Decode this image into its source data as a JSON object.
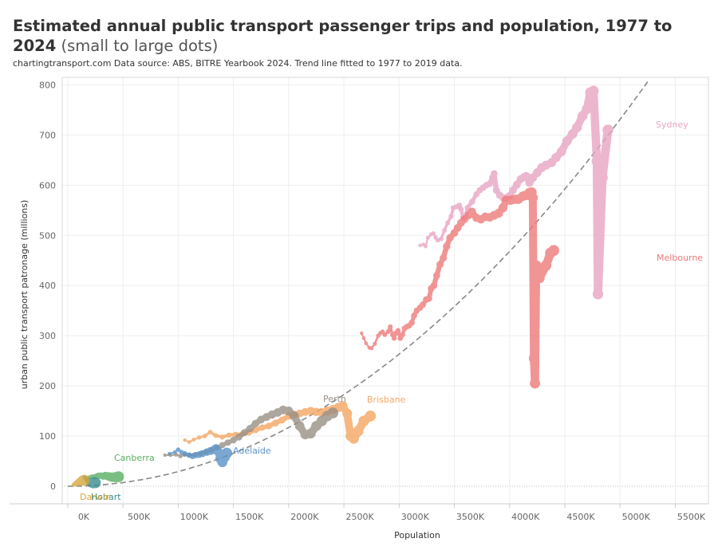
{
  "title": "Estimated annual public transport passenger trips and population, 1977 to 2024",
  "title_suffix": "(small to large dots)",
  "subtitle": "chartingtransport.com  Data source: ABS, BITRE Yearbook 2024. Trend line fitted to 1977 to 2019 data.",
  "chart_data": {
    "type": "scatter",
    "xlabel": "Population",
    "ylabel": "urban public transport patronage (millions)",
    "xlim": [
      -50000,
      5800000
    ],
    "ylim": [
      -35,
      815
    ],
    "x_ticks": [
      0,
      500000,
      1000000,
      1500000,
      2000000,
      2500000,
      3000000,
      3500000,
      4000000,
      4500000,
      5000000,
      5500000
    ],
    "x_tick_labels": [
      "0K",
      "500K",
      "1000K",
      "1500K",
      "2000K",
      "2500K",
      "3000K",
      "3500K",
      "4000K",
      "4500K",
      "5000K",
      "5500K"
    ],
    "y_ticks": [
      0,
      100,
      200,
      300,
      400,
      500,
      600,
      700,
      800
    ],
    "y_tick_labels": [
      "0",
      "100",
      "200",
      "300",
      "400",
      "500",
      "600",
      "700",
      "800"
    ],
    "grid": true,
    "trend_line": {
      "style": "dashed",
      "color": "#888888",
      "formula": "y = 0.5*pop_k^2/1e4 approx (quadratic)",
      "coef_a": 2.86e-05,
      "coef_b": 0.0
    },
    "series": [
      {
        "name": "Sydney",
        "color": "#e8a5c3",
        "points": [
          [
            3190000,
            480
          ],
          [
            3220000,
            482
          ],
          [
            3240000,
            478
          ],
          [
            3260000,
            495
          ],
          [
            3290000,
            502
          ],
          [
            3310000,
            504
          ],
          [
            3330000,
            496
          ],
          [
            3350000,
            490
          ],
          [
            3380000,
            493
          ],
          [
            3410000,
            510
          ],
          [
            3440000,
            525
          ],
          [
            3470000,
            538
          ],
          [
            3490000,
            555
          ],
          [
            3520000,
            557
          ],
          [
            3545000,
            560
          ],
          [
            3560000,
            552
          ],
          [
            3580000,
            535
          ],
          [
            3600000,
            538
          ],
          [
            3620000,
            555
          ],
          [
            3660000,
            567
          ],
          [
            3700000,
            582
          ],
          [
            3730000,
            590
          ],
          [
            3760000,
            595
          ],
          [
            3790000,
            600
          ],
          [
            3820000,
            603
          ],
          [
            3845000,
            615
          ],
          [
            3860000,
            623
          ],
          [
            3880000,
            590
          ],
          [
            3910000,
            580
          ],
          [
            3940000,
            575
          ],
          [
            3970000,
            575
          ],
          [
            4000000,
            579
          ],
          [
            4030000,
            590
          ],
          [
            4065000,
            601
          ],
          [
            4100000,
            612
          ],
          [
            4130000,
            616
          ],
          [
            4150000,
            618
          ],
          [
            4180000,
            605
          ],
          [
            4210000,
            615
          ],
          [
            4250000,
            625
          ],
          [
            4290000,
            635
          ],
          [
            4330000,
            640
          ],
          [
            4380000,
            645
          ],
          [
            4420000,
            655
          ],
          [
            4470000,
            667
          ],
          [
            4520000,
            688
          ],
          [
            4570000,
            702
          ],
          [
            4610000,
            715
          ],
          [
            4660000,
            738
          ],
          [
            4700000,
            752
          ],
          [
            4730000,
            785
          ],
          [
            4760000,
            788
          ],
          [
            4790000,
            648
          ],
          [
            4800000,
            383
          ],
          [
            4840000,
            615
          ],
          [
            4890000,
            710
          ]
        ]
      },
      {
        "name": "Melbourne",
        "color": "#ee7a7a",
        "points": [
          [
            2660000,
            305
          ],
          [
            2680000,
            295
          ],
          [
            2700000,
            285
          ],
          [
            2730000,
            276
          ],
          [
            2750000,
            275
          ],
          [
            2780000,
            284
          ],
          [
            2810000,
            300
          ],
          [
            2830000,
            305
          ],
          [
            2850000,
            308
          ],
          [
            2870000,
            302
          ],
          [
            2900000,
            308
          ],
          [
            2920000,
            318
          ],
          [
            2940000,
            302
          ],
          [
            2955000,
            295
          ],
          [
            2970000,
            305
          ],
          [
            2990000,
            310
          ],
          [
            3010000,
            295
          ],
          [
            3030000,
            302
          ],
          [
            3050000,
            315
          ],
          [
            3070000,
            318
          ],
          [
            3090000,
            320
          ],
          [
            3115000,
            326
          ],
          [
            3135000,
            340
          ],
          [
            3160000,
            350
          ],
          [
            3190000,
            356
          ],
          [
            3215000,
            362
          ],
          [
            3245000,
            372
          ],
          [
            3270000,
            374
          ],
          [
            3290000,
            394
          ],
          [
            3315000,
            400
          ],
          [
            3340000,
            420
          ],
          [
            3370000,
            442
          ],
          [
            3400000,
            455
          ],
          [
            3430000,
            478
          ],
          [
            3460000,
            495
          ],
          [
            3500000,
            505
          ],
          [
            3530000,
            515
          ],
          [
            3560000,
            525
          ],
          [
            3590000,
            532
          ],
          [
            3630000,
            540
          ],
          [
            3660000,
            547
          ],
          [
            3700000,
            535
          ],
          [
            3740000,
            532
          ],
          [
            3780000,
            537
          ],
          [
            3820000,
            536
          ],
          [
            3860000,
            540
          ],
          [
            3900000,
            544
          ],
          [
            3940000,
            555
          ],
          [
            3970000,
            570
          ],
          [
            4010000,
            570
          ],
          [
            4050000,
            572
          ],
          [
            4080000,
            572
          ],
          [
            4120000,
            578
          ],
          [
            4150000,
            580
          ],
          [
            4180000,
            585
          ],
          [
            4200000,
            586
          ],
          [
            4210000,
            575
          ],
          [
            4220000,
            255
          ],
          [
            4230000,
            205
          ],
          [
            4240000,
            440
          ],
          [
            4270000,
            415
          ],
          [
            4330000,
            440
          ],
          [
            4370000,
            465
          ],
          [
            4400000,
            470
          ]
        ]
      },
      {
        "name": "Brisbane",
        "color": "#f5a662",
        "points": [
          [
            1060000,
            92
          ],
          [
            1100000,
            88
          ],
          [
            1140000,
            93
          ],
          [
            1190000,
            97
          ],
          [
            1240000,
            100
          ],
          [
            1290000,
            108
          ],
          [
            1340000,
            101
          ],
          [
            1400000,
            98
          ],
          [
            1460000,
            102
          ],
          [
            1520000,
            103
          ],
          [
            1580000,
            104
          ],
          [
            1640000,
            107
          ],
          [
            1700000,
            112
          ],
          [
            1760000,
            117
          ],
          [
            1820000,
            120
          ],
          [
            1880000,
            126
          ],
          [
            1940000,
            132
          ],
          [
            2000000,
            140
          ],
          [
            2050000,
            143
          ],
          [
            2100000,
            145
          ],
          [
            2150000,
            148
          ],
          [
            2200000,
            150
          ],
          [
            2250000,
            148
          ],
          [
            2300000,
            147
          ],
          [
            2350000,
            150
          ],
          [
            2400000,
            153
          ],
          [
            2450000,
            157
          ],
          [
            2490000,
            160
          ],
          [
            2530000,
            145
          ],
          [
            2560000,
            100
          ],
          [
            2590000,
            95
          ],
          [
            2630000,
            110
          ],
          [
            2680000,
            130
          ],
          [
            2740000,
            140
          ]
        ]
      },
      {
        "name": "Perth",
        "color": "#999085",
        "points": [
          [
            880000,
            62
          ],
          [
            930000,
            62
          ],
          [
            980000,
            63
          ],
          [
            1020000,
            60
          ],
          [
            1060000,
            63
          ],
          [
            1100000,
            62
          ],
          [
            1150000,
            63
          ],
          [
            1200000,
            65
          ],
          [
            1250000,
            68
          ],
          [
            1300000,
            72
          ],
          [
            1350000,
            77
          ],
          [
            1400000,
            82
          ],
          [
            1450000,
            87
          ],
          [
            1500000,
            92
          ],
          [
            1550000,
            98
          ],
          [
            1600000,
            107
          ],
          [
            1650000,
            115
          ],
          [
            1700000,
            125
          ],
          [
            1750000,
            133
          ],
          [
            1800000,
            138
          ],
          [
            1850000,
            143
          ],
          [
            1900000,
            147
          ],
          [
            1950000,
            152
          ],
          [
            2000000,
            150
          ],
          [
            2050000,
            140
          ],
          [
            2100000,
            120
          ],
          [
            2150000,
            103
          ],
          [
            2200000,
            105
          ],
          [
            2250000,
            120
          ],
          [
            2300000,
            130
          ],
          [
            2350000,
            140
          ],
          [
            2400000,
            146
          ]
        ]
      },
      {
        "name": "Adelaide",
        "color": "#5b93c8",
        "points": [
          [
            920000,
            65
          ],
          [
            970000,
            68
          ],
          [
            1000000,
            73
          ],
          [
            1030000,
            68
          ],
          [
            1060000,
            65
          ],
          [
            1100000,
            62
          ],
          [
            1130000,
            60
          ],
          [
            1160000,
            62
          ],
          [
            1190000,
            63
          ],
          [
            1220000,
            65
          ],
          [
            1260000,
            68
          ],
          [
            1290000,
            70
          ],
          [
            1320000,
            72
          ],
          [
            1340000,
            75
          ],
          [
            1360000,
            70
          ],
          [
            1380000,
            55
          ],
          [
            1400000,
            48
          ],
          [
            1420000,
            58
          ],
          [
            1440000,
            66
          ]
        ]
      },
      {
        "name": "Canberra",
        "color": "#5bae62",
        "points": [
          [
            180000,
            15
          ],
          [
            200000,
            18
          ],
          [
            220000,
            19
          ],
          [
            240000,
            19
          ],
          [
            260000,
            20
          ],
          [
            280000,
            21
          ],
          [
            300000,
            21
          ],
          [
            320000,
            20
          ],
          [
            340000,
            21
          ],
          [
            360000,
            20
          ],
          [
            380000,
            19
          ],
          [
            400000,
            18
          ],
          [
            420000,
            18
          ],
          [
            440000,
            18
          ],
          [
            460000,
            19
          ]
        ]
      },
      {
        "name": "Hobart",
        "color": "#3a8e91",
        "points": [
          [
            150000,
            18
          ],
          [
            160000,
            16
          ],
          [
            170000,
            14
          ],
          [
            180000,
            12
          ],
          [
            190000,
            10
          ],
          [
            200000,
            8
          ],
          [
            210000,
            6
          ],
          [
            230000,
            5
          ],
          [
            240000,
            8
          ],
          [
            250000,
            7
          ]
        ]
      },
      {
        "name": "Darwin",
        "color": "#d6a83f",
        "points": [
          [
            50000,
            3
          ],
          [
            60000,
            4
          ],
          [
            70000,
            5
          ],
          [
            80000,
            6
          ],
          [
            90000,
            7
          ],
          [
            100000,
            8
          ],
          [
            110000,
            9
          ],
          [
            120000,
            10
          ],
          [
            130000,
            11
          ],
          [
            140000,
            12
          ],
          [
            150000,
            12
          ]
        ]
      }
    ]
  },
  "labels": [
    {
      "text": "Sydney",
      "color": "#e8a5c3"
    },
    {
      "text": "Melbourne",
      "color": "#ee7a7a"
    },
    {
      "text": "Brisbane",
      "color": "#f5a662"
    },
    {
      "text": "Perth",
      "color": "#999085"
    },
    {
      "text": "Adelaide",
      "color": "#5b93c8"
    },
    {
      "text": "Canberra",
      "color": "#5bae62"
    },
    {
      "text": "Hobart",
      "color": "#3a8e91"
    },
    {
      "text": "Darwin",
      "color": "#d6a83f"
    }
  ]
}
